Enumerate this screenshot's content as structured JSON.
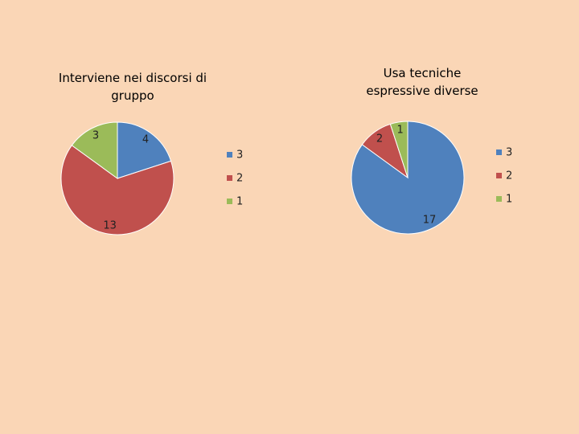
{
  "chart_data": [
    {
      "type": "pie",
      "title": "Interviene nei discorsi di gruppo",
      "categories": [
        "3",
        "2",
        "1"
      ],
      "values": [
        4,
        13,
        3
      ],
      "colors": [
        "#4f81bd",
        "#c0504d",
        "#9bbb59"
      ]
    },
    {
      "type": "pie",
      "title": "Usa tecniche espressive diverse",
      "categories": [
        "3",
        "2",
        "1"
      ],
      "values": [
        17,
        2,
        1
      ],
      "colors": [
        "#4f81bd",
        "#c0504d",
        "#9bbb59"
      ]
    }
  ]
}
